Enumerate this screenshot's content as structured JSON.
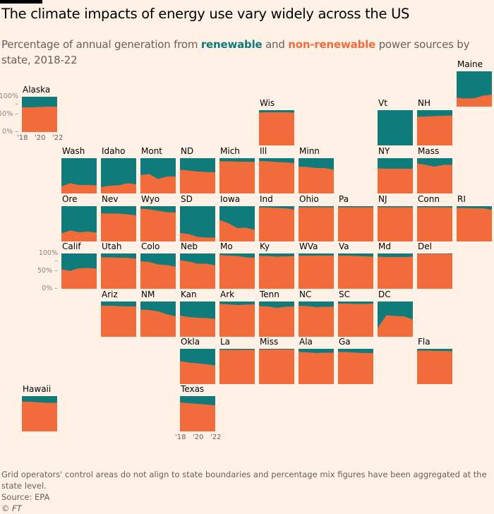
{
  "header": {
    "title": "The climate impacts of energy use vary widely across the US",
    "subtitle_before": "Percentage of annual generation from ",
    "subtitle_renewable": "renewable",
    "subtitle_and": " and ",
    "subtitle_nonrenewable": "non-renewable",
    "subtitle_after": " power sources by state, 2018-22"
  },
  "colors": {
    "renewable": "#0f7b7b",
    "non_renewable": "#f26b3a",
    "background": "#fff1e5"
  },
  "footer": {
    "note": "Grid operators' control areas do not align to state boundaries and percentage mix figures have been aggregated at the state level.",
    "source": "Source: EPA",
    "copyright": "© FT"
  },
  "chart_data": {
    "type": "area",
    "title": "The climate impacts of energy use vary widely across the US",
    "subtitle": "Percentage of annual generation from renewable and non-renewable power sources by state, 2018-22",
    "layout": "tile-grid map of US states",
    "x": [
      2018,
      2019,
      2020,
      2021,
      2022
    ],
    "x_tick_labels": [
      "'18",
      "'20",
      "'22"
    ],
    "y_tick_labels": [
      "100%",
      "50%",
      "0%"
    ],
    "ylim": [
      0,
      100
    ],
    "series_names": [
      "non-renewable",
      "renewable"
    ],
    "legend": "inline in subtitle",
    "states": [
      {
        "name": "Alaska",
        "row": 0,
        "col": 0,
        "non_renewable": [
          70,
          70,
          71,
          72,
          72
        ]
      },
      {
        "name": "Maine",
        "row": -1,
        "col": 11,
        "non_renewable": [
          25,
          23,
          24,
          31,
          34
        ]
      },
      {
        "name": "Wis",
        "row": 1,
        "col": 6,
        "non_renewable": [
          93,
          94,
          94,
          94,
          93
        ]
      },
      {
        "name": "Vt",
        "row": 1,
        "col": 9,
        "non_renewable": [
          0,
          0,
          0,
          0,
          0
        ]
      },
      {
        "name": "NH",
        "row": 1,
        "col": 10,
        "non_renewable": [
          81,
          82,
          83,
          84,
          85
        ]
      },
      {
        "name": "Wash",
        "row": 2,
        "col": 1,
        "non_renewable": [
          20,
          29,
          24,
          24,
          23
        ]
      },
      {
        "name": "Idaho",
        "row": 2,
        "col": 2,
        "non_renewable": [
          18,
          22,
          23,
          29,
          26
        ]
      },
      {
        "name": "Mont",
        "row": 2,
        "col": 3,
        "non_renewable": [
          52,
          55,
          41,
          48,
          48
        ]
      },
      {
        "name": "ND",
        "row": 2,
        "col": 4,
        "non_renewable": [
          67,
          65,
          62,
          61,
          60
        ]
      },
      {
        "name": "Mich",
        "row": 2,
        "col": 5,
        "non_renewable": [
          91,
          91,
          90,
          90,
          89
        ]
      },
      {
        "name": "Ill",
        "row": 2,
        "col": 6,
        "non_renewable": [
          92,
          91,
          89,
          88,
          86
        ]
      },
      {
        "name": "Minn",
        "row": 2,
        "col": 7,
        "non_renewable": [
          76,
          75,
          72,
          72,
          67
        ]
      },
      {
        "name": "NY",
        "row": 2,
        "col": 9,
        "non_renewable": [
          71,
          70,
          70,
          70,
          70
        ]
      },
      {
        "name": "Mass",
        "row": 2,
        "col": 10,
        "non_renewable": [
          85,
          81,
          76,
          81,
          81
        ]
      },
      {
        "name": "Ore",
        "row": 3,
        "col": 1,
        "non_renewable": [
          23,
          31,
          26,
          28,
          25
        ]
      },
      {
        "name": "Nev",
        "row": 3,
        "col": 2,
        "non_renewable": [
          80,
          79,
          79,
          77,
          74
        ]
      },
      {
        "name": "Wyo",
        "row": 3,
        "col": 3,
        "non_renewable": [
          93,
          91,
          87,
          83,
          82
        ]
      },
      {
        "name": "SD",
        "row": 3,
        "col": 4,
        "non_renewable": [
          24,
          21,
          13,
          11,
          11
        ]
      },
      {
        "name": "Iowa",
        "row": 3,
        "col": 5,
        "non_renewable": [
          61,
          52,
          38,
          39,
          33
        ]
      },
      {
        "name": "Ind",
        "row": 3,
        "col": 6,
        "non_renewable": [
          97,
          96,
          95,
          94,
          91
        ]
      },
      {
        "name": "Ohio",
        "row": 3,
        "col": 7,
        "non_renewable": [
          97,
          97,
          97,
          97,
          97
        ]
      },
      {
        "name": "Pa",
        "row": 3,
        "col": 8,
        "non_renewable": [
          97,
          97,
          97,
          97,
          97
        ]
      },
      {
        "name": "NJ",
        "row": 3,
        "col": 9,
        "non_renewable": [
          97,
          97,
          97,
          97,
          97
        ]
      },
      {
        "name": "Conn",
        "row": 3,
        "col": 10,
        "non_renewable": [
          97,
          97,
          97,
          97,
          96
        ]
      },
      {
        "name": "RI",
        "row": 3,
        "col": 11,
        "non_renewable": [
          95,
          95,
          94,
          94,
          90
        ]
      },
      {
        "name": "Calif",
        "row": 4,
        "col": 1,
        "non_renewable": [
          55,
          51,
          58,
          59,
          57
        ]
      },
      {
        "name": "Utah",
        "row": 4,
        "col": 2,
        "non_renewable": [
          89,
          89,
          88,
          88,
          85
        ]
      },
      {
        "name": "Colo",
        "row": 4,
        "col": 3,
        "non_renewable": [
          78,
          76,
          69,
          67,
          63
        ]
      },
      {
        "name": "Neb",
        "row": 4,
        "col": 4,
        "non_renewable": [
          81,
          77,
          71,
          71,
          66
        ]
      },
      {
        "name": "Mo",
        "row": 4,
        "col": 5,
        "non_renewable": [
          96,
          94,
          93,
          89,
          88
        ]
      },
      {
        "name": "Ky",
        "row": 4,
        "col": 6,
        "non_renewable": [
          93,
          93,
          91,
          92,
          92
        ]
      },
      {
        "name": "WVa",
        "row": 4,
        "col": 7,
        "non_renewable": [
          94,
          94,
          94,
          94,
          94
        ]
      },
      {
        "name": "Va",
        "row": 4,
        "col": 8,
        "non_renewable": [
          94,
          94,
          93,
          92,
          91
        ]
      },
      {
        "name": "Md",
        "row": 4,
        "col": 9,
        "non_renewable": [
          91,
          90,
          90,
          90,
          91
        ]
      },
      {
        "name": "Del",
        "row": 4,
        "col": 10,
        "non_renewable": [
          99,
          99,
          99,
          99,
          98
        ]
      },
      {
        "name": "Ariz",
        "row": 5,
        "col": 2,
        "non_renewable": [
          88,
          88,
          87,
          86,
          86
        ]
      },
      {
        "name": "NM",
        "row": 5,
        "col": 3,
        "non_renewable": [
          77,
          76,
          72,
          64,
          58
        ]
      },
      {
        "name": "Kan",
        "row": 5,
        "col": 4,
        "non_renewable": [
          60,
          56,
          54,
          53,
          51
        ]
      },
      {
        "name": "Ark",
        "row": 5,
        "col": 5,
        "non_renewable": [
          93,
          92,
          90,
          91,
          92
        ]
      },
      {
        "name": "Tenn",
        "row": 5,
        "col": 6,
        "non_renewable": [
          87,
          86,
          82,
          85,
          86
        ]
      },
      {
        "name": "NC",
        "row": 5,
        "col": 7,
        "non_renewable": [
          88,
          87,
          84,
          85,
          85
        ]
      },
      {
        "name": "SC",
        "row": 5,
        "col": 8,
        "non_renewable": [
          94,
          94,
          93,
          93,
          94
        ]
      },
      {
        "name": "DC",
        "row": 5,
        "col": 9,
        "non_renewable": [
          25,
          61,
          59,
          58,
          49
        ]
      },
      {
        "name": "Okla",
        "row": 6,
        "col": 4,
        "non_renewable": [
          65,
          61,
          59,
          56,
          53
        ]
      },
      {
        "name": "La",
        "row": 6,
        "col": 5,
        "non_renewable": [
          97,
          97,
          97,
          97,
          97
        ]
      },
      {
        "name": "Miss",
        "row": 6,
        "col": 6,
        "non_renewable": [
          98,
          98,
          98,
          98,
          98
        ]
      },
      {
        "name": "Ala",
        "row": 6,
        "col": 7,
        "non_renewable": [
          91,
          90,
          88,
          89,
          89
        ]
      },
      {
        "name": "Ga",
        "row": 6,
        "col": 8,
        "non_renewable": [
          91,
          91,
          89,
          88,
          88
        ]
      },
      {
        "name": "Fla",
        "row": 6,
        "col": 10,
        "non_renewable": [
          95,
          95,
          94,
          94,
          93
        ]
      },
      {
        "name": "Hawaii",
        "row": 7,
        "col": 0,
        "non_renewable": [
          84,
          84,
          82,
          81,
          81
        ]
      },
      {
        "name": "Texas",
        "row": 7,
        "col": 4,
        "non_renewable": [
          82,
          80,
          78,
          76,
          74
        ]
      }
    ]
  }
}
